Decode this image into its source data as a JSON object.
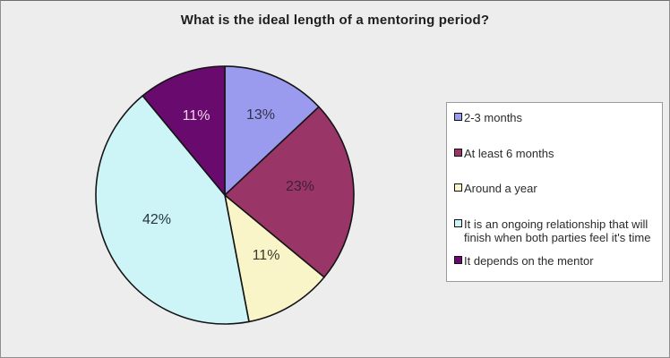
{
  "chart": {
    "title": "What is the ideal length of a mentoring period?"
  },
  "chart_data": {
    "type": "pie",
    "title": "What is the ideal length of a mentoring period?",
    "labels": [
      "2-3 months",
      "At least 6 months",
      "Around a year",
      "It is an ongoing relationship that will finish when both parties feel it's time",
      "It depends on the mentor"
    ],
    "values": [
      13,
      23,
      11,
      42,
      11
    ],
    "unit": "%",
    "data_labels": [
      "13%",
      "23%",
      "11%",
      "42%",
      "11%"
    ],
    "colors": [
      "#9A9AEE",
      "#9A3567",
      "#FAF5C8",
      "#CDF5F7",
      "#690A6E"
    ],
    "data_label_colors": [
      "#32324a",
      "#3d1f3a",
      "#3a3a28",
      "#24343c",
      "#F2D3EC"
    ],
    "outline_color": "#141414",
    "legend_position": "right",
    "start_angle_deg": 0,
    "direction": "clockwise",
    "background_color": "#EDEDED",
    "legend_background_color": "#FFFFFF"
  }
}
